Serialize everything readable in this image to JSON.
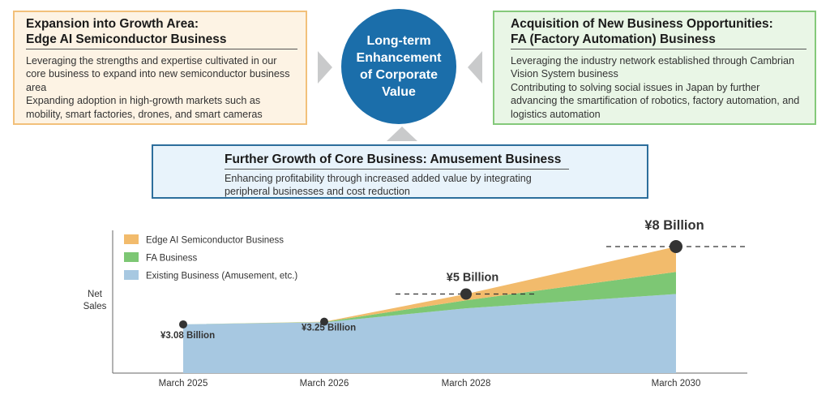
{
  "center": {
    "text": "Long-term\nEnhancement\nof Corporate\nValue"
  },
  "edge_box": {
    "title_line1": "Expansion into Growth Area:",
    "title_line2": "Edge AI Semiconductor Business",
    "para1": "Leveraging the strengths and expertise cultivated in our core business to expand into new semiconductor business area",
    "para2": "Expanding adoption in high-growth markets such as mobility, smart factories, drones, and smart cameras"
  },
  "fa_box": {
    "title_line1": "Acquisition of New Business Opportunities:",
    "title_line2": "FA (Factory Automation) Business",
    "para1": "Leveraging the industry network established through Cambrian Vision System business",
    "para2": "Contributing to solving social issues in Japan by further advancing the smartification of robotics, factory automation, and logistics automation"
  },
  "core_box": {
    "title": "Further Growth of Core Business: Amusement Business",
    "body": "Enhancing profitability through increased added value by integrating peripheral businesses and cost reduction"
  },
  "chart_data": {
    "type": "area",
    "stacked": true,
    "ylabel": "Net\nSales",
    "x": [
      "March 2025",
      "March 2026",
      "March 2028",
      "March 2030"
    ],
    "series": [
      {
        "name": "Existing Business (Amusement, etc.)",
        "color": "#a7c8e1",
        "values": [
          3.08,
          3.21,
          4.1,
          5.0
        ]
      },
      {
        "name": "FA Business",
        "color": "#7dc774",
        "values": [
          0.0,
          0.02,
          0.5,
          1.4
        ]
      },
      {
        "name": "Edge AI Semiconductor Business",
        "color": "#f2bb6c",
        "values": [
          0.0,
          0.02,
          0.4,
          1.6
        ]
      }
    ],
    "totals_marked": [
      {
        "x": "March 2025",
        "value": 3.08,
        "label": "¥3.08 Billion"
      },
      {
        "x": "March 2026",
        "value": 3.25,
        "label": "¥3.25 Billion"
      },
      {
        "x": "March 2028",
        "value": 5.0,
        "label": "¥5 Billion"
      },
      {
        "x": "March 2030",
        "value": 8.0,
        "label": "¥8 Billion"
      }
    ],
    "ylim": [
      0,
      8.5
    ],
    "legend_position": "top-left",
    "grid": false
  }
}
